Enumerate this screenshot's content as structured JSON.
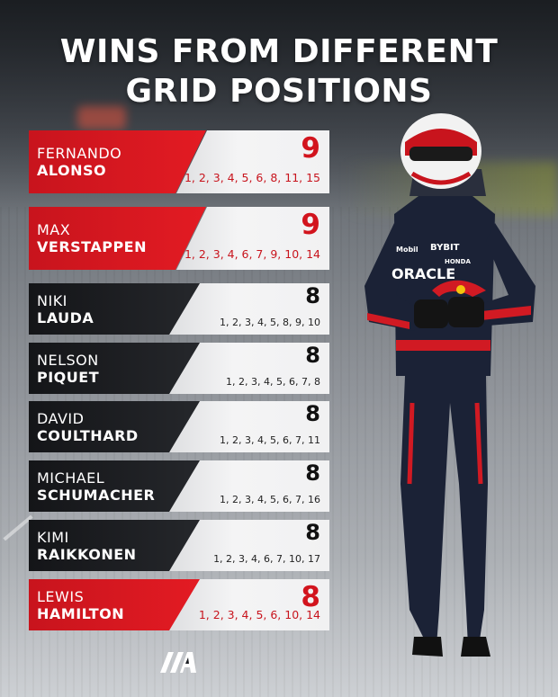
{
  "title": {
    "line1": "WINS FROM DIFFERENT",
    "line2": "GRID POSITIONS"
  },
  "drivers": [
    {
      "first": "FERNANDO",
      "last": "ALONSO",
      "wins": "9",
      "grids": "1, 2, 3, 4, 5, 6, 8, 11, 15",
      "style": "red"
    },
    {
      "first": "MAX",
      "last": "VERSTAPPEN",
      "wins": "9",
      "grids": "1, 2, 3, 4, 6, 7, 9, 10, 14",
      "style": "red"
    },
    {
      "first": "NIKI",
      "last": "LAUDA",
      "wins": "8",
      "grids": "1, 2, 3, 4, 5, 8, 9, 10",
      "style": "dark"
    },
    {
      "first": "NELSON",
      "last": "PIQUET",
      "wins": "8",
      "grids": "1, 2, 3, 4, 5, 6, 7, 8",
      "style": "dark"
    },
    {
      "first": "DAVID",
      "last": "COULTHARD",
      "wins": "8",
      "grids": "1, 2, 3, 4, 5, 6, 7, 11",
      "style": "dark"
    },
    {
      "first": "MICHAEL",
      "last": "SCHUMACHER",
      "wins": "8",
      "grids": "1, 2, 3, 4, 5, 6, 7, 16",
      "style": "dark"
    },
    {
      "first": "KIMI",
      "last": "RAIKKONEN",
      "wins": "8",
      "grids": "1, 2, 3, 4, 6, 7, 10, 17",
      "style": "dark"
    },
    {
      "first": "LEWIS",
      "last": "HAMILTON",
      "wins": "8",
      "grids": "1, 2, 3, 4, 5, 6, 10, 14",
      "style": "red"
    }
  ],
  "driver_suit": {
    "sponsor_main": "ORACLE",
    "sponsor_chest": "BYBIT",
    "sponsor_side": "HONDA",
    "sponsor_collar": "Mobil"
  },
  "colors": {
    "accent_red": "#e31b23",
    "dark_panel": "#1b1c1f",
    "stat_panel": "#f2f2f3",
    "suit_navy": "#1b2236"
  },
  "icons": {
    "logo": "checkered-a-logo-icon"
  }
}
